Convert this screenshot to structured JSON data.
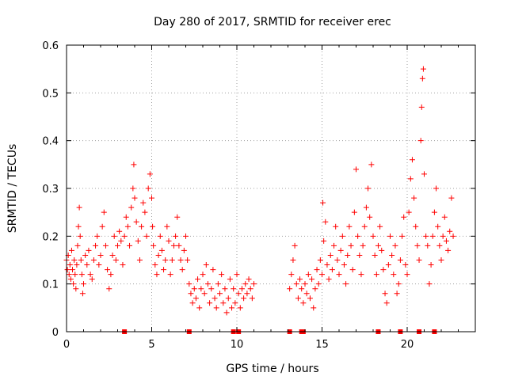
{
  "chart_data": {
    "type": "scatter",
    "title": "Day 280 of 2017, SRMTID for receiver erec",
    "xlabel": "GPS time / hours",
    "ylabel": "SRMTID / TECUs",
    "xlim": [
      0,
      24
    ],
    "ylim": [
      0,
      0.6
    ],
    "grid": true,
    "marker": "+",
    "color": "#ff0000",
    "x_ticks": [
      {
        "value": 0,
        "label": "0"
      },
      {
        "value": 5,
        "label": "5"
      },
      {
        "value": 10,
        "label": "10"
      },
      {
        "value": 15,
        "label": "15"
      },
      {
        "value": 20,
        "label": "20"
      }
    ],
    "y_ticks": [
      {
        "value": 0,
        "label": "0"
      },
      {
        "value": 0.1,
        "label": "0.1"
      },
      {
        "value": 0.2,
        "label": "0.2"
      },
      {
        "value": 0.3,
        "label": "0.3"
      },
      {
        "value": 0.4,
        "label": "0.4"
      },
      {
        "value": 0.5,
        "label": "0.5"
      },
      {
        "value": 0.6,
        "label": "0.6"
      }
    ],
    "baseline_markers_hours": [
      3.4,
      7.2,
      9.8,
      10.1,
      13.1,
      13.8,
      13.9,
      18.3,
      19.6,
      20.7,
      21.6
    ],
    "series": [
      {
        "name": "SRMTID",
        "points": [
          [
            0.0,
            0.15
          ],
          [
            0.05,
            0.13
          ],
          [
            0.1,
            0.16
          ],
          [
            0.15,
            0.12
          ],
          [
            0.2,
            0.14
          ],
          [
            0.25,
            0.11
          ],
          [
            0.3,
            0.17
          ],
          [
            0.35,
            0.13
          ],
          [
            0.4,
            0.1
          ],
          [
            0.45,
            0.15
          ],
          [
            0.5,
            0.12
          ],
          [
            0.55,
            0.09
          ],
          [
            0.6,
            0.14
          ],
          [
            0.65,
            0.18
          ],
          [
            0.7,
            0.22
          ],
          [
            0.75,
            0.26
          ],
          [
            0.8,
            0.2
          ],
          [
            0.85,
            0.15
          ],
          [
            0.9,
            0.12
          ],
          [
            0.95,
            0.08
          ],
          [
            1.0,
            0.1
          ],
          [
            1.1,
            0.16
          ],
          [
            1.2,
            0.14
          ],
          [
            1.3,
            0.17
          ],
          [
            1.4,
            0.12
          ],
          [
            1.5,
            0.11
          ],
          [
            1.6,
            0.15
          ],
          [
            1.7,
            0.18
          ],
          [
            1.8,
            0.2
          ],
          [
            1.9,
            0.14
          ],
          [
            2.0,
            0.16
          ],
          [
            2.1,
            0.22
          ],
          [
            2.2,
            0.25
          ],
          [
            2.3,
            0.18
          ],
          [
            2.4,
            0.13
          ],
          [
            2.5,
            0.09
          ],
          [
            2.6,
            0.12
          ],
          [
            2.7,
            0.16
          ],
          [
            2.8,
            0.2
          ],
          [
            2.9,
            0.15
          ],
          [
            3.0,
            0.18
          ],
          [
            3.1,
            0.21
          ],
          [
            3.2,
            0.19
          ],
          [
            3.3,
            0.14
          ],
          [
            3.4,
            0.2
          ],
          [
            3.5,
            0.24
          ],
          [
            3.6,
            0.22
          ],
          [
            3.7,
            0.18
          ],
          [
            3.8,
            0.26
          ],
          [
            3.9,
            0.3
          ],
          [
            3.95,
            0.35
          ],
          [
            4.0,
            0.28
          ],
          [
            4.1,
            0.23
          ],
          [
            4.2,
            0.19
          ],
          [
            4.3,
            0.15
          ],
          [
            4.4,
            0.22
          ],
          [
            4.5,
            0.27
          ],
          [
            4.6,
            0.25
          ],
          [
            4.7,
            0.2
          ],
          [
            4.8,
            0.3
          ],
          [
            4.9,
            0.33
          ],
          [
            5.0,
            0.28
          ],
          [
            5.05,
            0.22
          ],
          [
            5.1,
            0.18
          ],
          [
            5.2,
            0.14
          ],
          [
            5.3,
            0.12
          ],
          [
            5.4,
            0.16
          ],
          [
            5.5,
            0.2
          ],
          [
            5.6,
            0.17
          ],
          [
            5.7,
            0.13
          ],
          [
            5.8,
            0.15
          ],
          [
            5.9,
            0.22
          ],
          [
            6.0,
            0.19
          ],
          [
            6.1,
            0.12
          ],
          [
            6.2,
            0.15
          ],
          [
            6.3,
            0.18
          ],
          [
            6.4,
            0.2
          ],
          [
            6.5,
            0.24
          ],
          [
            6.6,
            0.18
          ],
          [
            6.7,
            0.15
          ],
          [
            6.8,
            0.13
          ],
          [
            6.9,
            0.17
          ],
          [
            7.0,
            0.2
          ],
          [
            7.1,
            0.15
          ],
          [
            7.2,
            0.1
          ],
          [
            7.3,
            0.08
          ],
          [
            7.4,
            0.06
          ],
          [
            7.5,
            0.09
          ],
          [
            7.6,
            0.07
          ],
          [
            7.7,
            0.11
          ],
          [
            7.8,
            0.05
          ],
          [
            7.9,
            0.09
          ],
          [
            8.0,
            0.12
          ],
          [
            8.1,
            0.08
          ],
          [
            8.2,
            0.14
          ],
          [
            8.3,
            0.1
          ],
          [
            8.4,
            0.06
          ],
          [
            8.5,
            0.09
          ],
          [
            8.6,
            0.13
          ],
          [
            8.7,
            0.07
          ],
          [
            8.8,
            0.05
          ],
          [
            8.9,
            0.1
          ],
          [
            9.0,
            0.08
          ],
          [
            9.1,
            0.12
          ],
          [
            9.2,
            0.06
          ],
          [
            9.3,
            0.09
          ],
          [
            9.4,
            0.04
          ],
          [
            9.5,
            0.07
          ],
          [
            9.6,
            0.11
          ],
          [
            9.7,
            0.05
          ],
          [
            9.8,
            0.09
          ],
          [
            9.9,
            0.06
          ],
          [
            10.0,
            0.12
          ],
          [
            10.1,
            0.08
          ],
          [
            10.2,
            0.05
          ],
          [
            10.3,
            0.09
          ],
          [
            10.4,
            0.07
          ],
          [
            10.5,
            0.1
          ],
          [
            10.6,
            0.08
          ],
          [
            10.7,
            0.11
          ],
          [
            10.8,
            0.09
          ],
          [
            10.9,
            0.07
          ],
          [
            11.0,
            0.1
          ],
          [
            13.1,
            0.09
          ],
          [
            13.2,
            0.12
          ],
          [
            13.3,
            0.15
          ],
          [
            13.4,
            0.18
          ],
          [
            13.5,
            0.1
          ],
          [
            13.6,
            0.07
          ],
          [
            13.7,
            0.11
          ],
          [
            13.8,
            0.09
          ],
          [
            13.9,
            0.06
          ],
          [
            14.0,
            0.1
          ],
          [
            14.1,
            0.08
          ],
          [
            14.2,
            0.12
          ],
          [
            14.3,
            0.07
          ],
          [
            14.4,
            0.11
          ],
          [
            14.5,
            0.05
          ],
          [
            14.6,
            0.09
          ],
          [
            14.7,
            0.13
          ],
          [
            14.8,
            0.1
          ],
          [
            14.9,
            0.15
          ],
          [
            15.0,
            0.12
          ],
          [
            15.05,
            0.27
          ],
          [
            15.1,
            0.19
          ],
          [
            15.2,
            0.23
          ],
          [
            15.3,
            0.14
          ],
          [
            15.4,
            0.11
          ],
          [
            15.5,
            0.16
          ],
          [
            15.6,
            0.13
          ],
          [
            15.7,
            0.18
          ],
          [
            15.8,
            0.22
          ],
          [
            15.9,
            0.15
          ],
          [
            16.0,
            0.12
          ],
          [
            16.1,
            0.17
          ],
          [
            16.2,
            0.2
          ],
          [
            16.3,
            0.14
          ],
          [
            16.4,
            0.1
          ],
          [
            16.5,
            0.16
          ],
          [
            16.6,
            0.22
          ],
          [
            16.7,
            0.18
          ],
          [
            16.8,
            0.13
          ],
          [
            16.9,
            0.25
          ],
          [
            17.0,
            0.34
          ],
          [
            17.1,
            0.2
          ],
          [
            17.2,
            0.16
          ],
          [
            17.3,
            0.12
          ],
          [
            17.4,
            0.18
          ],
          [
            17.5,
            0.22
          ],
          [
            17.6,
            0.26
          ],
          [
            17.7,
            0.3
          ],
          [
            17.8,
            0.24
          ],
          [
            17.9,
            0.35
          ],
          [
            18.0,
            0.2
          ],
          [
            18.1,
            0.16
          ],
          [
            18.2,
            0.12
          ],
          [
            18.3,
            0.18
          ],
          [
            18.4,
            0.22
          ],
          [
            18.5,
            0.17
          ],
          [
            18.6,
            0.13
          ],
          [
            18.7,
            0.08
          ],
          [
            18.8,
            0.06
          ],
          [
            18.9,
            0.14
          ],
          [
            19.0,
            0.2
          ],
          [
            19.1,
            0.16
          ],
          [
            19.2,
            0.12
          ],
          [
            19.3,
            0.18
          ],
          [
            19.4,
            0.08
          ],
          [
            19.5,
            0.1
          ],
          [
            19.6,
            0.15
          ],
          [
            19.7,
            0.2
          ],
          [
            19.8,
            0.24
          ],
          [
            19.9,
            0.14
          ],
          [
            20.0,
            0.12
          ],
          [
            20.1,
            0.25
          ],
          [
            20.2,
            0.32
          ],
          [
            20.3,
            0.36
          ],
          [
            20.4,
            0.28
          ],
          [
            20.5,
            0.22
          ],
          [
            20.6,
            0.18
          ],
          [
            20.7,
            0.15
          ],
          [
            20.8,
            0.4
          ],
          [
            20.85,
            0.47
          ],
          [
            20.9,
            0.53
          ],
          [
            20.95,
            0.55
          ],
          [
            21.0,
            0.33
          ],
          [
            21.1,
            0.2
          ],
          [
            21.2,
            0.18
          ],
          [
            21.3,
            0.1
          ],
          [
            21.4,
            0.14
          ],
          [
            21.5,
            0.2
          ],
          [
            21.6,
            0.25
          ],
          [
            21.7,
            0.3
          ],
          [
            21.8,
            0.22
          ],
          [
            21.9,
            0.18
          ],
          [
            22.0,
            0.15
          ],
          [
            22.1,
            0.2
          ],
          [
            22.2,
            0.24
          ],
          [
            22.3,
            0.19
          ],
          [
            22.4,
            0.17
          ],
          [
            22.5,
            0.21
          ],
          [
            22.6,
            0.28
          ],
          [
            22.7,
            0.2
          ]
        ]
      }
    ]
  }
}
